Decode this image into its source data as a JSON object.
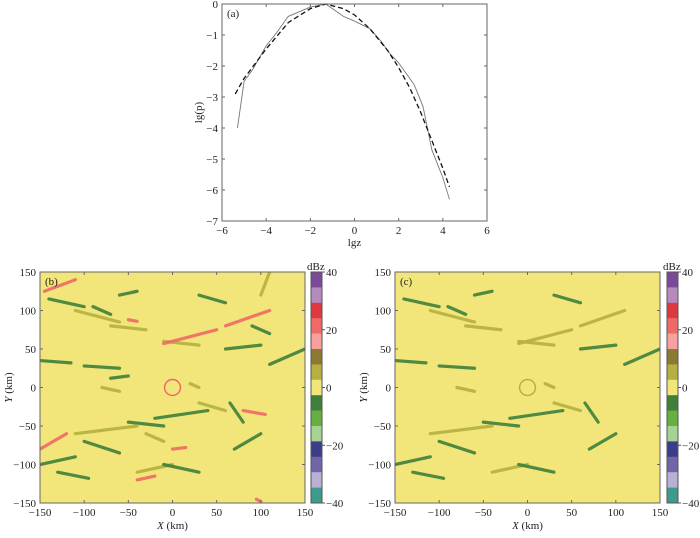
{
  "chart_data": [
    {
      "panel_label": "(a)",
      "type": "line",
      "xlabel": "lgz",
      "ylabel": "lg(p)",
      "xlim": [
        -6,
        6
      ],
      "ylim": [
        -7,
        0
      ],
      "xticks": [
        -6,
        -4,
        -2,
        0,
        2,
        4,
        6
      ],
      "yticks": [
        0,
        -1,
        -2,
        -3,
        -4,
        -5,
        -6,
        -7
      ],
      "series": [
        {
          "style": "solid",
          "color": "#777777",
          "x": [
            -5.3,
            -5.0,
            -4.6,
            -4.0,
            -3.5,
            -3.0,
            -2.0,
            -1.3,
            -0.5,
            0,
            0.7,
            1.2,
            1.6,
            2.0,
            2.7,
            3.1,
            3.5,
            4.0,
            4.3
          ],
          "y": [
            -4.0,
            -2.5,
            -2.1,
            -1.35,
            -0.9,
            -0.4,
            -0.1,
            0,
            -0.4,
            -0.55,
            -0.8,
            -1.2,
            -1.6,
            -1.9,
            -2.6,
            -3.3,
            -4.7,
            -5.6,
            -6.3
          ]
        },
        {
          "style": "dashed",
          "color": "#111111",
          "x": [
            -5.4,
            -5.0,
            -4.0,
            -3.0,
            -2.0,
            -1.3,
            -0.5,
            0,
            0.7,
            1.5,
            2.0,
            2.5,
            3.0,
            3.5,
            4.0,
            4.3
          ],
          "y": [
            -2.9,
            -2.4,
            -1.45,
            -0.6,
            -0.15,
            0,
            -0.15,
            -0.35,
            -0.8,
            -1.5,
            -2.05,
            -2.7,
            -3.5,
            -4.4,
            -5.3,
            -5.9
          ]
        }
      ]
    },
    {
      "panel_label": "(b)",
      "type": "heatmap",
      "xlabel": "X (km)",
      "ylabel": "Y (km)",
      "xlim": [
        -150,
        150
      ],
      "ylim": [
        -150,
        150
      ],
      "xticks": [
        -150,
        -100,
        -50,
        0,
        50,
        100,
        150
      ],
      "yticks": [
        150,
        100,
        50,
        0,
        -50,
        -100,
        -150
      ],
      "background_value": 0,
      "echo_streaks": [
        [
          -140,
          115,
          -100,
          105,
          -10
        ],
        [
          -145,
          125,
          -110,
          140,
          15
        ],
        [
          -110,
          100,
          -60,
          85,
          5
        ],
        [
          -90,
          105,
          -70,
          95,
          -10
        ],
        [
          -70,
          80,
          -30,
          75,
          5
        ],
        [
          -50,
          88,
          -40,
          86,
          15
        ],
        [
          -150,
          35,
          -115,
          32,
          -10
        ],
        [
          -100,
          28,
          -60,
          25,
          -10
        ],
        [
          -70,
          12,
          -50,
          15,
          -10
        ],
        [
          -10,
          60,
          30,
          55,
          5
        ],
        [
          -10,
          57,
          50,
          75,
          15
        ],
        [
          60,
          50,
          100,
          55,
          -10
        ],
        [
          90,
          80,
          110,
          70,
          -10
        ],
        [
          60,
          80,
          110,
          100,
          15
        ],
        [
          110,
          30,
          150,
          50,
          -10
        ],
        [
          30,
          -20,
          60,
          -30,
          5
        ],
        [
          -20,
          -40,
          40,
          -30,
          -10
        ],
        [
          -50,
          -45,
          -10,
          -50,
          -10
        ],
        [
          65,
          -20,
          80,
          -45,
          -10
        ],
        [
          70,
          -80,
          100,
          -60,
          -10
        ],
        [
          -110,
          -60,
          -40,
          -50,
          5
        ],
        [
          -100,
          -70,
          -60,
          -85,
          -10
        ],
        [
          -150,
          -100,
          -110,
          -90,
          -10
        ],
        [
          -150,
          -80,
          -120,
          -60,
          15
        ],
        [
          -40,
          -110,
          0,
          -100,
          5
        ],
        [
          -10,
          -100,
          30,
          -110,
          -10
        ],
        [
          -40,
          -120,
          -20,
          -115,
          15
        ],
        [
          0,
          -80,
          15,
          -78,
          15
        ],
        [
          95,
          -145,
          100,
          -148,
          15
        ],
        [
          -80,
          0,
          -60,
          -5,
          5
        ],
        [
          20,
          5,
          30,
          0,
          5
        ],
        [
          100,
          120,
          110,
          150,
          5
        ],
        [
          -60,
          120,
          -40,
          125,
          -10
        ],
        [
          30,
          120,
          60,
          110,
          -10
        ],
        [
          -30,
          -60,
          -10,
          -70,
          5
        ],
        [
          -130,
          -110,
          -95,
          -118,
          -10
        ],
        [
          80,
          -30,
          105,
          -35,
          15
        ]
      ],
      "ring": {
        "x": 0,
        "y": 0,
        "r_km": 9,
        "value": 15
      }
    },
    {
      "panel_label": "(c)",
      "type": "heatmap",
      "xlabel": "X (km)",
      "ylabel": "Y (km)",
      "xlim": [
        -150,
        150
      ],
      "ylim": [
        -150,
        150
      ],
      "xticks": [
        -150,
        -100,
        -50,
        0,
        50,
        100,
        150
      ],
      "yticks": [
        150,
        100,
        50,
        0,
        -50,
        -100,
        -150
      ],
      "background_value": 0,
      "echo_streaks": [
        [
          -140,
          115,
          -100,
          105,
          -10
        ],
        [
          -110,
          100,
          -60,
          85,
          5
        ],
        [
          -90,
          105,
          -70,
          95,
          -10
        ],
        [
          -70,
          80,
          -30,
          75,
          5
        ],
        [
          -150,
          35,
          -115,
          32,
          -10
        ],
        [
          -100,
          28,
          -60,
          25,
          -10
        ],
        [
          -10,
          60,
          30,
          55,
          5
        ],
        [
          -10,
          57,
          50,
          75,
          5
        ],
        [
          60,
          50,
          100,
          55,
          -10
        ],
        [
          60,
          80,
          110,
          100,
          5
        ],
        [
          110,
          30,
          150,
          50,
          -10
        ],
        [
          30,
          -20,
          60,
          -30,
          5
        ],
        [
          -20,
          -40,
          40,
          -30,
          -10
        ],
        [
          -50,
          -45,
          -10,
          -50,
          -10
        ],
        [
          65,
          -20,
          80,
          -45,
          -10
        ],
        [
          70,
          -80,
          100,
          -60,
          -10
        ],
        [
          -110,
          -60,
          -40,
          -50,
          5
        ],
        [
          -100,
          -70,
          -60,
          -85,
          -10
        ],
        [
          -150,
          -100,
          -110,
          -90,
          -10
        ],
        [
          -40,
          -110,
          0,
          -100,
          5
        ],
        [
          -10,
          -100,
          30,
          -110,
          -10
        ],
        [
          -80,
          0,
          -60,
          -5,
          5
        ],
        [
          20,
          5,
          30,
          0,
          5
        ],
        [
          -60,
          120,
          -40,
          125,
          -10
        ],
        [
          30,
          120,
          60,
          110,
          -10
        ],
        [
          -130,
          -110,
          -95,
          -118,
          -10
        ]
      ],
      "ring": {
        "x": 0,
        "y": 0,
        "r_km": 9,
        "value": 5
      }
    }
  ],
  "colorbar": {
    "unit": "dBz",
    "ticks": [
      40,
      20,
      0,
      -20,
      -40
    ],
    "range": [
      -40,
      40
    ],
    "colors_top_to_bottom": [
      "#7b4a97",
      "#b58bbf",
      "#de3840",
      "#ef6a66",
      "#f6a0a0",
      "#8a7a34",
      "#b5b040",
      "#f2e67a",
      "#3f7f3a",
      "#65b041",
      "#a6d294",
      "#3b3d8a",
      "#6f66a8",
      "#b9b0d6",
      "#3e9a8a"
    ]
  },
  "value_colors": {
    "15": "#ef6a66",
    "5": "#b5b040",
    "0": "#f2e67a",
    "-10": "#3f7f3a"
  }
}
